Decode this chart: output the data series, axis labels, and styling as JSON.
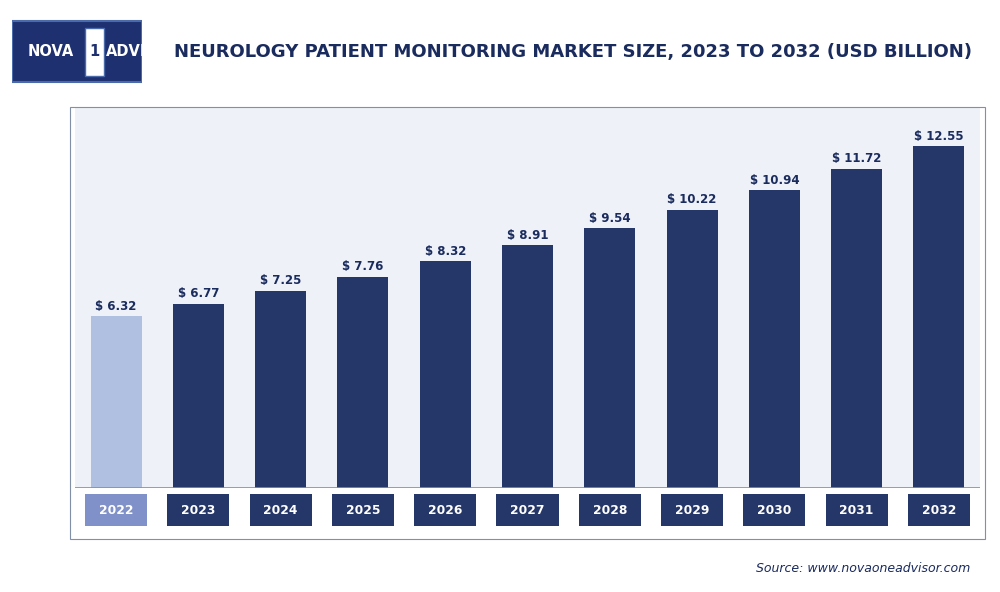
{
  "title": "NEUROLOGY PATIENT MONITORING MARKET SIZE, 2023 TO 2032 (USD BILLION)",
  "years": [
    "2022",
    "2023",
    "2024",
    "2025",
    "2026",
    "2027",
    "2028",
    "2029",
    "2030",
    "2031",
    "2032"
  ],
  "values": [
    6.32,
    6.77,
    7.25,
    7.76,
    8.32,
    8.91,
    9.54,
    10.22,
    10.94,
    11.72,
    12.55
  ],
  "bar_colors": [
    "#b0c0e0",
    "#253668",
    "#253668",
    "#253668",
    "#253668",
    "#253668",
    "#253668",
    "#253668",
    "#253668",
    "#253668",
    "#253668"
  ],
  "year_label_colors": [
    "white",
    "white",
    "white",
    "white",
    "white",
    "white",
    "white",
    "white",
    "white",
    "white",
    "white"
  ],
  "year_label_bg": [
    "#8090c8",
    "#253668",
    "#253668",
    "#253668",
    "#253668",
    "#253668",
    "#253668",
    "#253668",
    "#253668",
    "#253668",
    "#253668"
  ],
  "ylim": [
    0,
    14
  ],
  "grid_color": "#c8d4e4",
  "chart_bg": "#eef1f7",
  "outer_bg": "#ffffff",
  "source_text": "Source: www.novaoneadvisor.com",
  "value_label_color": "#1a2b5e",
  "title_color": "#1a2b5e",
  "title_fontsize": 13,
  "logo_bg": "#1e3070",
  "logo_one_bg": "#ffffff",
  "logo_one_color": "#1e3070",
  "logo_border": "#4a6aaa",
  "header_bg": "#ffffff",
  "separator_color": "#c8d4e4"
}
